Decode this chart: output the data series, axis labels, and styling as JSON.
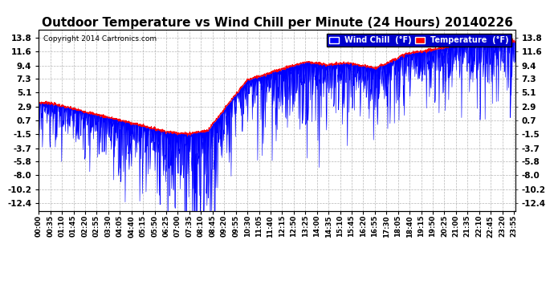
{
  "title": "Outdoor Temperature vs Wind Chill per Minute (24 Hours) 20140226",
  "copyright": "Copyright 2014 Cartronics.com",
  "yticks": [
    13.8,
    11.6,
    9.4,
    7.3,
    5.1,
    2.9,
    0.7,
    -1.5,
    -3.7,
    -5.8,
    -8.0,
    -10.2,
    -12.4
  ],
  "ymin": -13.6,
  "ymax": 15.0,
  "bg_color": "#ffffff",
  "grid_color": "#aaaaaa",
  "temp_color": "#ff0000",
  "wind_chill_color": "#0000ff",
  "title_fontsize": 11,
  "tick_fontsize": 7.5,
  "legend_labels": [
    "Wind Chill  (°F)",
    "Temperature  (°F)"
  ],
  "legend_colors": [
    "#0000ff",
    "#ff0000"
  ],
  "xtick_interval": 35,
  "n_minutes": 1440
}
